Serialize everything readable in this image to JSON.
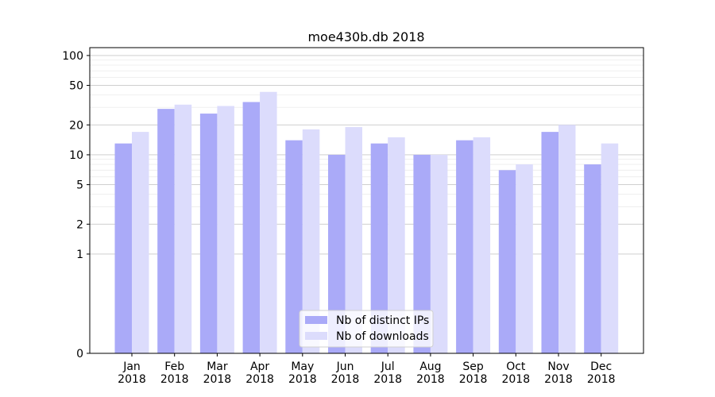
{
  "chart_data": {
    "type": "bar",
    "title": "moe430b.db 2018",
    "xlabel": "",
    "ylabel": "",
    "y_scale": "symlog",
    "ylim": [
      0,
      120
    ],
    "y_ticks": [
      0,
      1,
      2,
      5,
      10,
      20,
      50,
      100
    ],
    "y_tick_labels": [
      "0",
      "1",
      "2",
      "5",
      "10",
      "20",
      "50",
      "100"
    ],
    "grid": true,
    "legend_position": "bottom-center",
    "categories": [
      [
        "Jan",
        "2018"
      ],
      [
        "Feb",
        "2018"
      ],
      [
        "Mar",
        "2018"
      ],
      [
        "Apr",
        "2018"
      ],
      [
        "May",
        "2018"
      ],
      [
        "Jun",
        "2018"
      ],
      [
        "Jul",
        "2018"
      ],
      [
        "Aug",
        "2018"
      ],
      [
        "Sep",
        "2018"
      ],
      [
        "Oct",
        "2018"
      ],
      [
        "Nov",
        "2018"
      ],
      [
        "Dec",
        "2018"
      ]
    ],
    "series": [
      {
        "name": "Nb of distinct IPs",
        "color": "#aaaaf8",
        "values": [
          13,
          29,
          26,
          34,
          14,
          10,
          13,
          10,
          14,
          7,
          17,
          8
        ]
      },
      {
        "name": "Nb of downloads",
        "color": "#dcdcfc",
        "values": [
          17,
          32,
          31,
          43,
          18,
          19,
          15,
          10,
          15,
          8,
          20,
          13
        ]
      }
    ]
  }
}
